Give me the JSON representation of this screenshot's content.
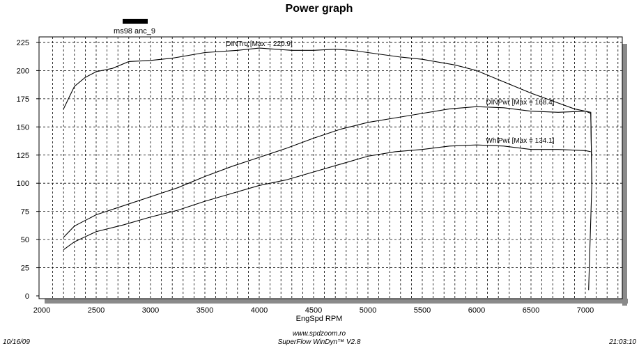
{
  "chart_data": {
    "type": "line",
    "title": "Power graph",
    "legend": {
      "label": "ms98 anc_9",
      "color": "#000000",
      "placement": "top-left"
    },
    "xlabel": "EngSpd  RPM",
    "ylabel": "",
    "xlim": [
      2000,
      7350
    ],
    "ylim": [
      0,
      230
    ],
    "xticks": [
      2000,
      2500,
      3000,
      3500,
      4000,
      4500,
      5000,
      5500,
      6000,
      6500,
      7000
    ],
    "yticks": [
      0,
      25,
      50,
      75,
      100,
      125,
      150,
      175,
      200,
      225
    ],
    "grid": true,
    "series": [
      {
        "name": "DINTrq",
        "label": "DINTrq [Max = 220.9]",
        "x": [
          2200,
          2300,
          2400,
          2500,
          2650,
          2800,
          3000,
          3200,
          3500,
          3800,
          4000,
          4300,
          4500,
          4700,
          4850,
          5000,
          5300,
          5500,
          5800,
          6000,
          6200,
          6500,
          6700,
          6900,
          7050,
          7060,
          7030
        ],
        "y": [
          166,
          186,
          194,
          199,
          202,
          208,
          209,
          211,
          216,
          218,
          220,
          218,
          218,
          219,
          218,
          216,
          212,
          210,
          205,
          200,
          192,
          180,
          173,
          166,
          163,
          100,
          5
        ]
      },
      {
        "name": "DINPwr",
        "label": "DINPwr [Max = 168.4]",
        "x": [
          2200,
          2300,
          2500,
          2750,
          3000,
          3250,
          3500,
          3750,
          4000,
          4250,
          4500,
          4750,
          5000,
          5250,
          5500,
          5750,
          6000,
          6250,
          6500,
          6750,
          7000,
          7050,
          7060
        ],
        "y": [
          52,
          62,
          72,
          80,
          88,
          96,
          106,
          115,
          123,
          131,
          140,
          148,
          154,
          158,
          162,
          166,
          168,
          167,
          164,
          163,
          164,
          162,
          100
        ]
      },
      {
        "name": "WhlPwr",
        "label": "WhlPwr [Max = 134.1]",
        "x": [
          2200,
          2300,
          2500,
          2750,
          3000,
          3250,
          3500,
          3750,
          4000,
          4250,
          4500,
          4750,
          5000,
          5250,
          5500,
          5750,
          6000,
          6250,
          6500,
          6750,
          7000,
          7050
        ],
        "y": [
          41,
          48,
          57,
          63,
          70,
          76,
          84,
          91,
          98,
          103,
          110,
          117,
          124,
          128,
          130,
          133,
          134,
          133,
          130,
          130,
          129,
          128
        ]
      }
    ]
  },
  "footer": {
    "website": "www.spdzoom.ro",
    "software": "SuperFlow WinDyn™ V2.8",
    "date": "10/16/09",
    "time": "21:03:10"
  }
}
